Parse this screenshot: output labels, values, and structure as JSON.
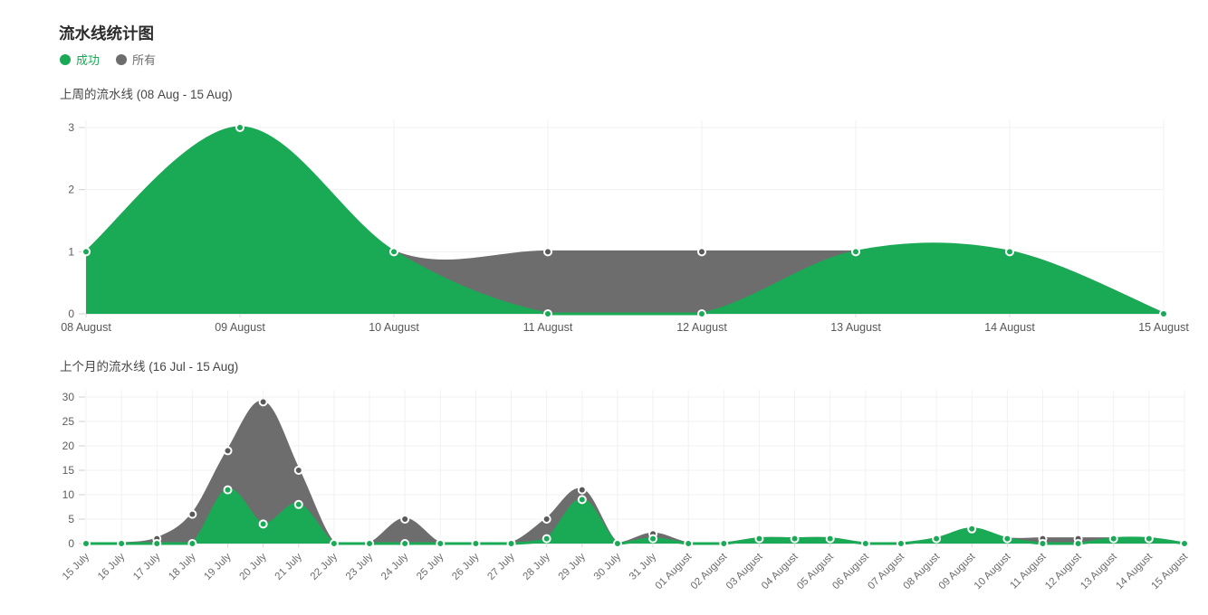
{
  "page_title": "流水线统计图",
  "legend": {
    "success_label": "成功",
    "success_color": "#1aaa55",
    "all_label": "所有",
    "all_color": "#6d6d6d"
  },
  "chart_data": [
    {
      "type": "area",
      "title": "上周的流水线 (08 Aug - 15 Aug)",
      "categories": [
        "08 August",
        "09 August",
        "10 August",
        "11 August",
        "12 August",
        "13 August",
        "14 August",
        "15 August"
      ],
      "series": [
        {
          "name": "所有",
          "color": "#6d6d6d",
          "marker_fill": "#595959",
          "values": [
            1,
            3,
            1,
            1,
            1,
            1,
            1,
            0
          ]
        },
        {
          "name": "成功",
          "color": "#1aaa55",
          "marker_fill": "#1aaa55",
          "values": [
            1,
            3,
            1,
            0,
            0,
            1,
            1,
            0
          ]
        }
      ],
      "ylim": [
        0,
        3
      ],
      "yticks": [
        0,
        1,
        2,
        3
      ],
      "x_label_rotation": 0,
      "grid": true,
      "legend_position": "top-left"
    },
    {
      "type": "area",
      "title": "上个月的流水线 (16 Jul - 15 Aug)",
      "categories": [
        "15 July",
        "16 July",
        "17 July",
        "18 July",
        "19 July",
        "20 July",
        "21 July",
        "22 July",
        "23 July",
        "24 July",
        "25 July",
        "26 July",
        "27 July",
        "28 July",
        "29 July",
        "30 July",
        "31 July",
        "01 August",
        "02 August",
        "03 August",
        "04 August",
        "05 August",
        "06 August",
        "07 August",
        "08 August",
        "09 August",
        "10 August",
        "11 August",
        "12 August",
        "13 August",
        "14 August",
        "15 August"
      ],
      "series": [
        {
          "name": "所有",
          "color": "#6d6d6d",
          "marker_fill": "#595959",
          "values": [
            0,
            0,
            1,
            6,
            19,
            29,
            15,
            0,
            0,
            5,
            0,
            0,
            0,
            5,
            11,
            0,
            2,
            0,
            0,
            1,
            1,
            1,
            0,
            0,
            1,
            3,
            1,
            1,
            1,
            1,
            1,
            0
          ]
        },
        {
          "name": "成功",
          "color": "#1aaa55",
          "marker_fill": "#1aaa55",
          "values": [
            0,
            0,
            0,
            0,
            11,
            4,
            8,
            0,
            0,
            0,
            0,
            0,
            0,
            1,
            9,
            0,
            1,
            0,
            0,
            1,
            1,
            1,
            0,
            0,
            1,
            3,
            1,
            0,
            0,
            1,
            1,
            0
          ]
        }
      ],
      "ylim": [
        0,
        30
      ],
      "yticks": [
        0,
        5,
        10,
        15,
        20,
        25,
        30
      ],
      "x_label_rotation": -45,
      "grid": true,
      "legend_position": "top-left"
    }
  ]
}
